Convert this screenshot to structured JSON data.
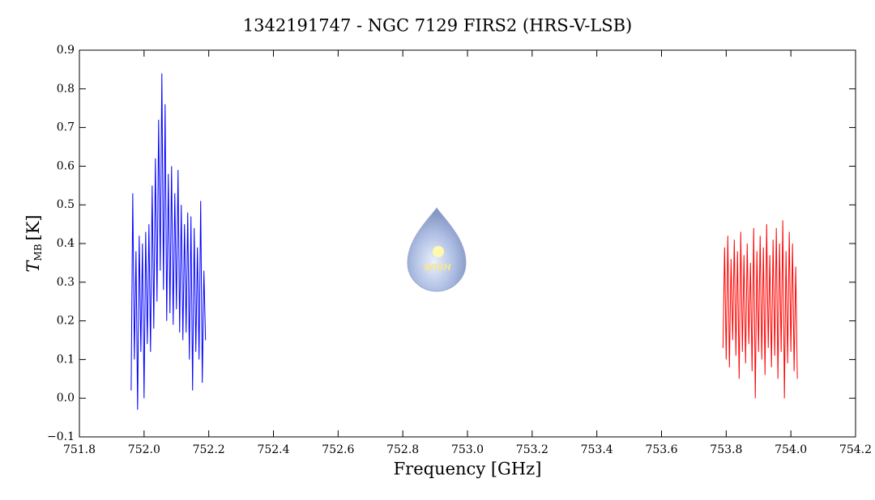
{
  "chart_data": {
    "type": "line",
    "title": "1342191747 - NGC 7129 FIRS2 (HRS-V-LSB)",
    "xlabel": "Frequency [GHz]",
    "ylabel": {
      "symbol": "T",
      "subscript": "MB",
      "unit": "[K]"
    },
    "watermark_text": "WISH",
    "xlim": [
      751.8,
      754.2
    ],
    "ylim": [
      -0.1,
      0.9
    ],
    "xticks": [
      751.8,
      {
        "value": 752.0,
        "label": "752.0"
      },
      752.2,
      752.4,
      752.6,
      752.8,
      {
        "value": 753.0,
        "label": "753.0"
      },
      753.2,
      753.4,
      753.6,
      753.8,
      {
        "value": 754.0,
        "label": "754.0"
      },
      754.2
    ],
    "yticks": [
      {
        "value": -0.1,
        "label": "−0.1"
      },
      {
        "value": 0,
        "label": "0.0"
      },
      0.1,
      0.2,
      0.3,
      0.4,
      0.5,
      0.6,
      0.7,
      0.8,
      0.9
    ],
    "grid": false,
    "series": [
      {
        "color": "#0000ff",
        "x": [
          751.96,
          751.965,
          751.97,
          751.975,
          751.98,
          751.985,
          751.99,
          751.995,
          752.0,
          752.005,
          752.01,
          752.015,
          752.02,
          752.025,
          752.03,
          752.035,
          752.04,
          752.045,
          752.05,
          752.055,
          752.06,
          752.065,
          752.07,
          752.075,
          752.08,
          752.085,
          752.09,
          752.095,
          752.1,
          752.105,
          752.11,
          752.115,
          752.12,
          752.125,
          752.13,
          752.135,
          752.14,
          752.145,
          752.15,
          752.155,
          752.16,
          752.165,
          752.17,
          752.175,
          752.18,
          752.185,
          752.19
        ],
        "values": [
          0.02,
          0.53,
          0.1,
          0.38,
          -0.03,
          0.42,
          0.12,
          0.4,
          0.0,
          0.43,
          0.14,
          0.45,
          0.12,
          0.55,
          0.18,
          0.62,
          0.25,
          0.72,
          0.33,
          0.84,
          0.28,
          0.76,
          0.2,
          0.58,
          0.22,
          0.6,
          0.19,
          0.53,
          0.23,
          0.59,
          0.17,
          0.5,
          0.15,
          0.45,
          0.17,
          0.48,
          0.1,
          0.47,
          0.02,
          0.44,
          0.12,
          0.39,
          0.1,
          0.51,
          0.04,
          0.33,
          0.15
        ]
      },
      {
        "color": "#ff0000",
        "x": [
          753.79,
          753.795,
          753.8,
          753.805,
          753.81,
          753.815,
          753.82,
          753.825,
          753.83,
          753.835,
          753.84,
          753.845,
          753.85,
          753.855,
          753.86,
          753.865,
          753.87,
          753.875,
          753.88,
          753.885,
          753.89,
          753.895,
          753.9,
          753.905,
          753.91,
          753.915,
          753.92,
          753.925,
          753.93,
          753.935,
          753.94,
          753.945,
          753.95,
          753.955,
          753.96,
          753.965,
          753.97,
          753.975,
          753.98,
          753.985,
          753.99,
          753.995,
          754.0,
          754.005,
          754.01,
          754.015,
          754.02
        ],
        "values": [
          0.13,
          0.39,
          0.1,
          0.42,
          0.08,
          0.36,
          0.15,
          0.41,
          0.11,
          0.38,
          0.05,
          0.43,
          0.12,
          0.37,
          0.09,
          0.4,
          0.14,
          0.35,
          0.07,
          0.44,
          0.0,
          0.38,
          0.12,
          0.42,
          0.1,
          0.39,
          0.06,
          0.45,
          0.13,
          0.37,
          0.08,
          0.41,
          0.11,
          0.44,
          0.05,
          0.4,
          0.12,
          0.46,
          0.0,
          0.38,
          0.09,
          0.43,
          0.12,
          0.4,
          0.07,
          0.34,
          0.05
        ]
      }
    ]
  }
}
